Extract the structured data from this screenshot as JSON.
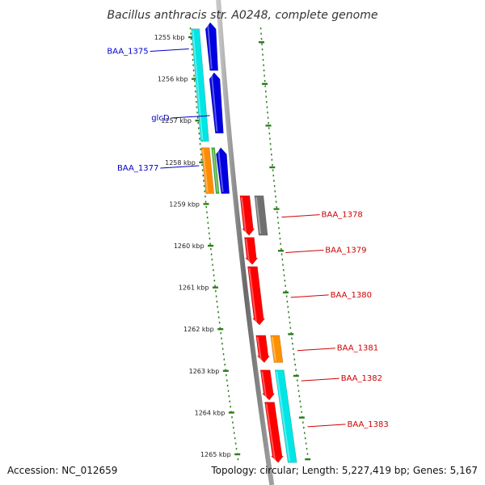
{
  "title": "Bacillus anthracis str. A0248, complete genome",
  "accession_text": "Accession: NC_012659",
  "summary_text": "Topology: circular; Length: 5,227,419 bp; Genes: 5,167",
  "tick_unit": "kbp",
  "ticks": [
    1255,
    1256,
    1257,
    1258,
    1259,
    1260,
    1261,
    1262,
    1263,
    1264,
    1265
  ],
  "colors": {
    "backbone": "#808080",
    "scale_dots": "#2e7d1e",
    "forward_label": "#0000c8",
    "reverse_label": "#d00000"
  },
  "genes": [
    {
      "name": "BAA_1375",
      "strand": "forward",
      "track": 1,
      "start_kbp": 1254.8,
      "end_kbp": 1257.5,
      "color": "#00e5e5",
      "arrow": "none"
    },
    {
      "name": "",
      "strand": "forward",
      "track": 2,
      "start_kbp": 1254.65,
      "end_kbp": 1255.8,
      "color": "#0000e0",
      "arrow": "up"
    },
    {
      "name": "glcD",
      "strand": "forward",
      "track": 2,
      "start_kbp": 1255.85,
      "end_kbp": 1257.3,
      "color": "#0000e0",
      "arrow": "up"
    },
    {
      "name": "BAA_1377",
      "strand": "forward",
      "track": 1,
      "start_kbp": 1257.65,
      "end_kbp": 1258.75,
      "color": "#ff8c00",
      "arrow": "none"
    },
    {
      "name": "",
      "strand": "forward",
      "track": 1.5,
      "start_kbp": 1257.65,
      "end_kbp": 1258.75,
      "color": "#3cb030",
      "arrow": "none"
    },
    {
      "name": "",
      "strand": "forward",
      "track": 2,
      "start_kbp": 1257.65,
      "end_kbp": 1258.75,
      "color": "#0000e0",
      "arrow": "up"
    },
    {
      "name": "",
      "strand": "reverse",
      "track": 1,
      "start_kbp": 1258.8,
      "end_kbp": 1259.75,
      "color": "#ff0000",
      "arrow": "down"
    },
    {
      "name": "BAA_1378",
      "strand": "reverse",
      "track": 2,
      "start_kbp": 1258.8,
      "end_kbp": 1259.75,
      "color": "#707070",
      "arrow": "none"
    },
    {
      "name": "BAA_1379",
      "strand": "reverse",
      "track": 1,
      "start_kbp": 1259.8,
      "end_kbp": 1260.45,
      "color": "#ff0000",
      "arrow": "down"
    },
    {
      "name": "BAA_1380",
      "strand": "reverse",
      "track": 1,
      "start_kbp": 1260.5,
      "end_kbp": 1261.9,
      "color": "#ff0000",
      "arrow": "down"
    },
    {
      "name": "",
      "strand": "reverse",
      "track": 1,
      "start_kbp": 1262.15,
      "end_kbp": 1262.8,
      "color": "#ff0000",
      "arrow": "down"
    },
    {
      "name": "BAA_1381",
      "strand": "reverse",
      "track": 2,
      "start_kbp": 1262.15,
      "end_kbp": 1262.8,
      "color": "#ff9000",
      "arrow": "none"
    },
    {
      "name": "",
      "strand": "reverse",
      "track": 1,
      "start_kbp": 1262.98,
      "end_kbp": 1263.7,
      "color": "#ff0000",
      "arrow": "down"
    },
    {
      "name": "BAA_1382",
      "strand": "reverse",
      "track": 2,
      "start_kbp": 1262.98,
      "end_kbp": 1265.2,
      "color": "#00e5e5",
      "arrow": "none"
    },
    {
      "name": "BAA_1383",
      "strand": "reverse",
      "track": 1,
      "start_kbp": 1263.75,
      "end_kbp": 1265.2,
      "color": "#ff0000",
      "arrow": "down"
    }
  ]
}
